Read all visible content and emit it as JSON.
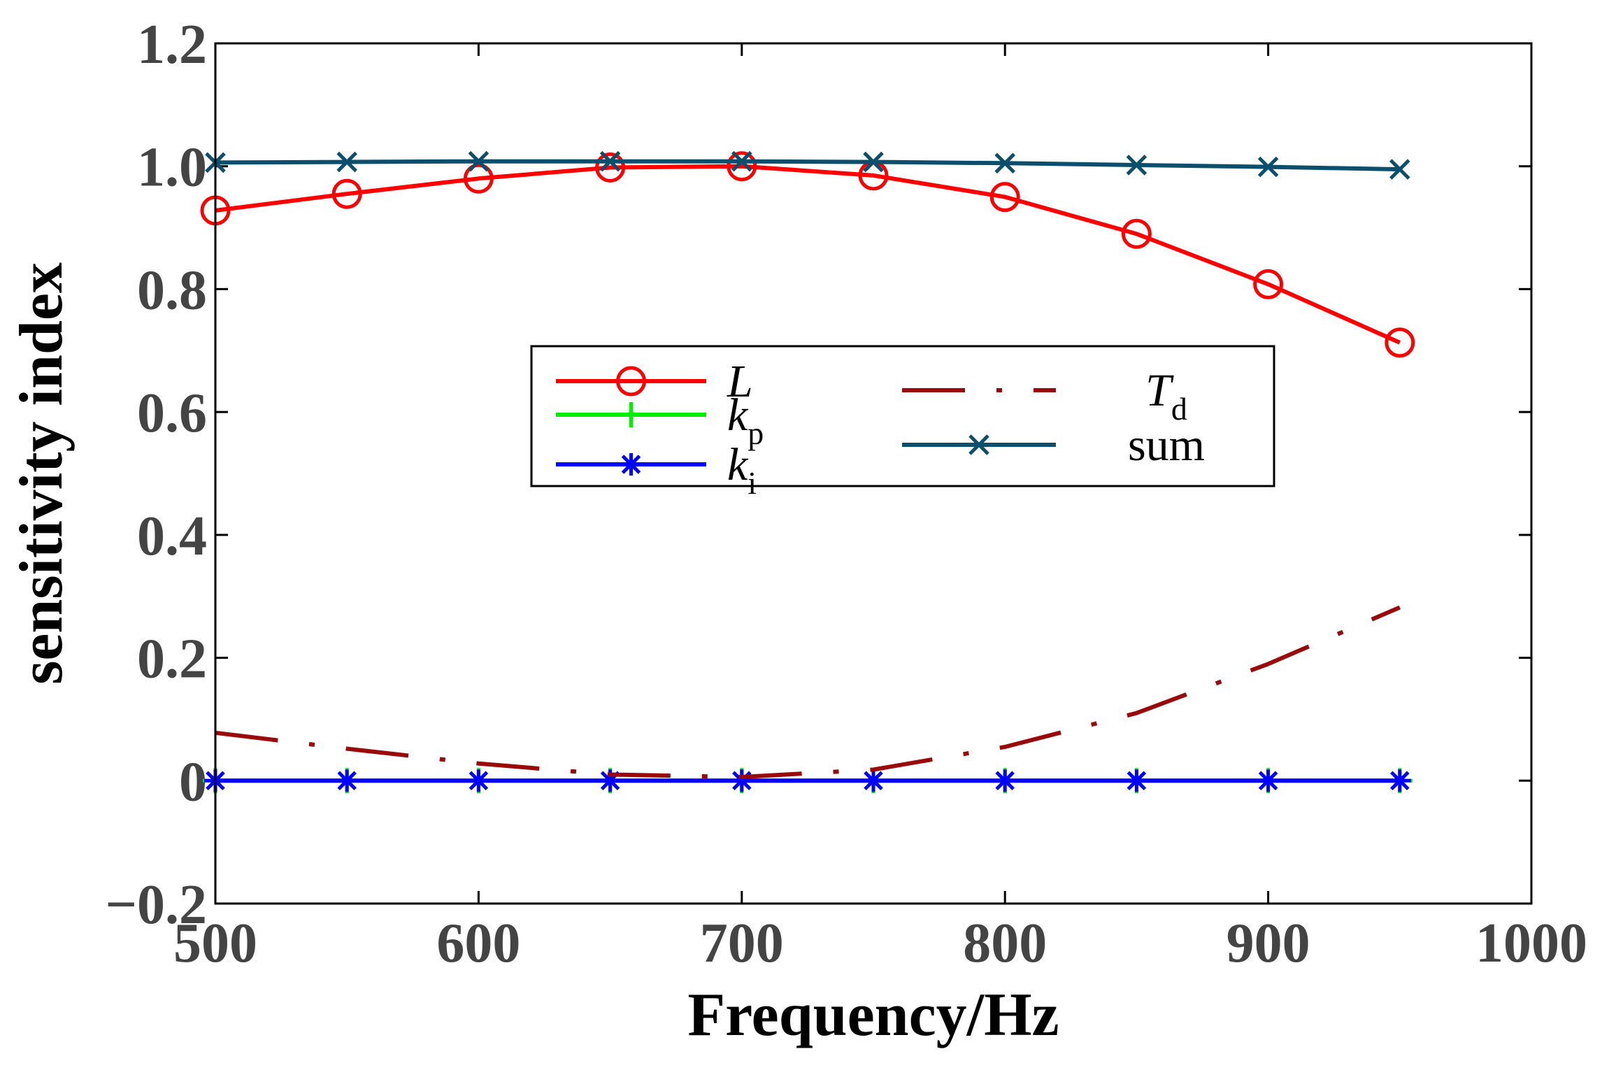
{
  "chart_data": {
    "type": "line",
    "xlabel": "Frequency/Hz",
    "ylabel": "sensitivity index",
    "xlim": [
      500,
      1000
    ],
    "ylim": [
      -0.2,
      1.2
    ],
    "xticks": [
      500,
      600,
      700,
      800,
      900,
      1000
    ],
    "xtick_labels": [
      "500",
      "600",
      "700",
      "800",
      "900",
      "1000"
    ],
    "yticks": [
      -0.2,
      0,
      0.2,
      0.4,
      0.6,
      0.8,
      1.0,
      1.2
    ],
    "ytick_labels": [
      "−0.2",
      "0",
      "0.2",
      "0.4",
      "0.6",
      "0.8",
      "1.0",
      "1.2"
    ],
    "x": [
      500,
      550,
      600,
      650,
      700,
      750,
      800,
      850,
      900,
      950
    ],
    "series": [
      {
        "name": "L",
        "sub": "",
        "color": "#ff0000",
        "style": "solid",
        "marker": "circle",
        "values": [
          0.928,
          0.955,
          0.98,
          0.998,
          1.0,
          0.985,
          0.95,
          0.89,
          0.808,
          0.713
        ]
      },
      {
        "name": "k",
        "sub": "p",
        "color": "#00ee00",
        "style": "solid",
        "marker": "plus",
        "values": [
          0,
          0,
          0,
          0,
          0,
          0,
          0,
          0,
          0,
          0
        ]
      },
      {
        "name": "k",
        "sub": "i",
        "color": "#0000ff",
        "style": "solid",
        "marker": "asterisk",
        "values": [
          0,
          0,
          0,
          0,
          0,
          0,
          0,
          0,
          0,
          0
        ]
      },
      {
        "name": "T",
        "sub": "d",
        "color": "#9b0a0a",
        "style": "dashdot",
        "marker": "none",
        "values": [
          0.078,
          0.052,
          0.028,
          0.01,
          0.006,
          0.018,
          0.055,
          0.11,
          0.19,
          0.282
        ]
      },
      {
        "name": "sum",
        "sub": "",
        "color": "#0b4f6c",
        "style": "solid",
        "marker": "x",
        "values": [
          1.006,
          1.007,
          1.008,
          1.008,
          1.008,
          1.007,
          1.005,
          1.002,
          0.999,
          0.995
        ]
      }
    ],
    "legend": {
      "location": "center",
      "columns": 2
    },
    "grid": false
  }
}
